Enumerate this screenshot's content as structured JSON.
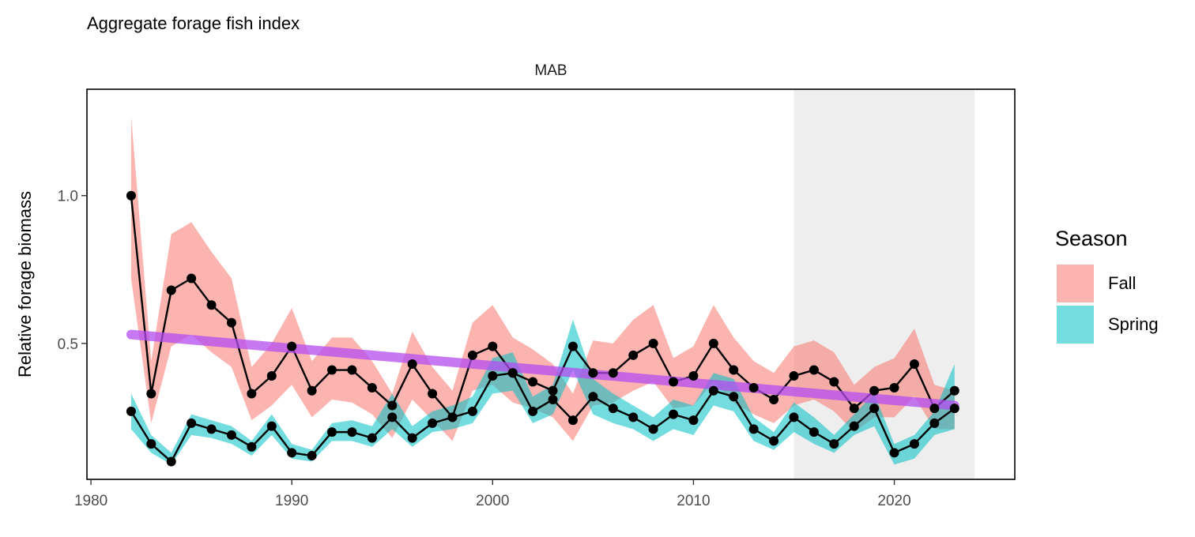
{
  "chart_data": {
    "type": "line",
    "title": "Aggregate forage fish index",
    "facet_label": "MAB",
    "xlabel": "",
    "ylabel": "Relative forage biomass",
    "xlim": [
      1979.8,
      2026.0
    ],
    "ylim": [
      0.04,
      1.36
    ],
    "x_ticks": [
      1980,
      1990,
      2000,
      2010,
      2020
    ],
    "x_tick_labels": [
      "1980",
      "1990",
      "2000",
      "2010",
      "2020"
    ],
    "y_ticks": [
      0.5,
      1.0
    ],
    "y_tick_labels": [
      "0.5",
      "1.0"
    ],
    "grid": false,
    "shaded_period": [
      2015,
      2024
    ],
    "legend": {
      "title": "Season",
      "position": "right",
      "entries": [
        {
          "label": "Fall",
          "color": "#F8766D"
        },
        {
          "label": "Spring",
          "color": "#00BFC4"
        }
      ]
    },
    "x": [
      1982,
      1983,
      1984,
      1985,
      1986,
      1987,
      1988,
      1989,
      1990,
      1991,
      1992,
      1993,
      1994,
      1995,
      1996,
      1997,
      1998,
      1999,
      2000,
      2001,
      2002,
      2003,
      2004,
      2005,
      2006,
      2007,
      2008,
      2009,
      2010,
      2011,
      2012,
      2013,
      2014,
      2015,
      2016,
      2017,
      2018,
      2019,
      2020,
      2021,
      2022,
      2023
    ],
    "series": [
      {
        "name": "Fall",
        "color": "#F8766D",
        "values": [
          1.0,
          0.33,
          0.68,
          0.72,
          0.63,
          0.57,
          0.33,
          0.39,
          0.49,
          0.34,
          0.41,
          0.41,
          0.35,
          0.29,
          0.43,
          0.33,
          0.25,
          0.46,
          0.49,
          0.4,
          0.37,
          0.34,
          0.49,
          0.4,
          0.4,
          0.46,
          0.5,
          0.37,
          0.39,
          0.5,
          0.41,
          0.35,
          0.31,
          0.39,
          0.41,
          0.37,
          0.28,
          0.34,
          0.35,
          0.43,
          0.28,
          0.34
        ],
        "lower": [
          0.72,
          0.23,
          0.49,
          0.53,
          0.47,
          0.42,
          0.24,
          0.29,
          0.36,
          0.25,
          0.31,
          0.3,
          0.26,
          0.18,
          0.31,
          0.24,
          0.17,
          0.34,
          0.36,
          0.3,
          0.28,
          0.25,
          0.17,
          0.29,
          0.3,
          0.34,
          0.37,
          0.28,
          0.29,
          0.37,
          0.3,
          0.26,
          0.23,
          0.29,
          0.31,
          0.27,
          0.2,
          0.25,
          0.25,
          0.32,
          0.21,
          0.21
        ],
        "upper": [
          1.27,
          0.44,
          0.87,
          0.91,
          0.81,
          0.72,
          0.42,
          0.5,
          0.62,
          0.44,
          0.52,
          0.52,
          0.44,
          0.33,
          0.54,
          0.42,
          0.34,
          0.57,
          0.63,
          0.52,
          0.48,
          0.43,
          0.33,
          0.51,
          0.5,
          0.58,
          0.63,
          0.45,
          0.49,
          0.63,
          0.52,
          0.44,
          0.4,
          0.49,
          0.51,
          0.47,
          0.36,
          0.42,
          0.45,
          0.55,
          0.36,
          0.34
        ]
      },
      {
        "name": "Spring",
        "color": "#00BFC4",
        "values": [
          0.27,
          0.16,
          0.1,
          0.23,
          0.21,
          0.19,
          0.15,
          0.22,
          0.13,
          0.12,
          0.2,
          0.2,
          0.18,
          0.25,
          0.18,
          0.23,
          0.25,
          0.27,
          0.39,
          0.4,
          0.27,
          0.31,
          0.24,
          0.32,
          0.28,
          0.25,
          0.21,
          0.26,
          0.24,
          0.34,
          0.32,
          0.21,
          0.17,
          0.25,
          0.2,
          0.16,
          0.22,
          0.28,
          0.13,
          0.16,
          0.23,
          0.28
        ],
        "lower": [
          0.21,
          0.13,
          0.09,
          0.19,
          0.18,
          0.16,
          0.12,
          0.19,
          0.11,
          0.1,
          0.17,
          0.17,
          0.15,
          0.21,
          0.15,
          0.2,
          0.21,
          0.23,
          0.33,
          0.34,
          0.23,
          0.26,
          0.41,
          0.26,
          0.23,
          0.21,
          0.17,
          0.21,
          0.19,
          0.29,
          0.27,
          0.17,
          0.14,
          0.2,
          0.16,
          0.13,
          0.19,
          0.22,
          0.09,
          0.11,
          0.19,
          0.21
        ],
        "upper": [
          0.33,
          0.19,
          0.13,
          0.26,
          0.24,
          0.22,
          0.17,
          0.26,
          0.16,
          0.14,
          0.23,
          0.24,
          0.22,
          0.33,
          0.22,
          0.27,
          0.29,
          0.32,
          0.45,
          0.47,
          0.32,
          0.36,
          0.58,
          0.38,
          0.33,
          0.29,
          0.25,
          0.31,
          0.29,
          0.4,
          0.38,
          0.25,
          0.2,
          0.3,
          0.25,
          0.19,
          0.26,
          0.33,
          0.16,
          0.19,
          0.27,
          0.43
        ]
      }
    ],
    "trend_line": {
      "color": "#B44CF0",
      "x": [
        1982,
        2023
      ],
      "values": [
        0.53,
        0.29
      ]
    }
  }
}
